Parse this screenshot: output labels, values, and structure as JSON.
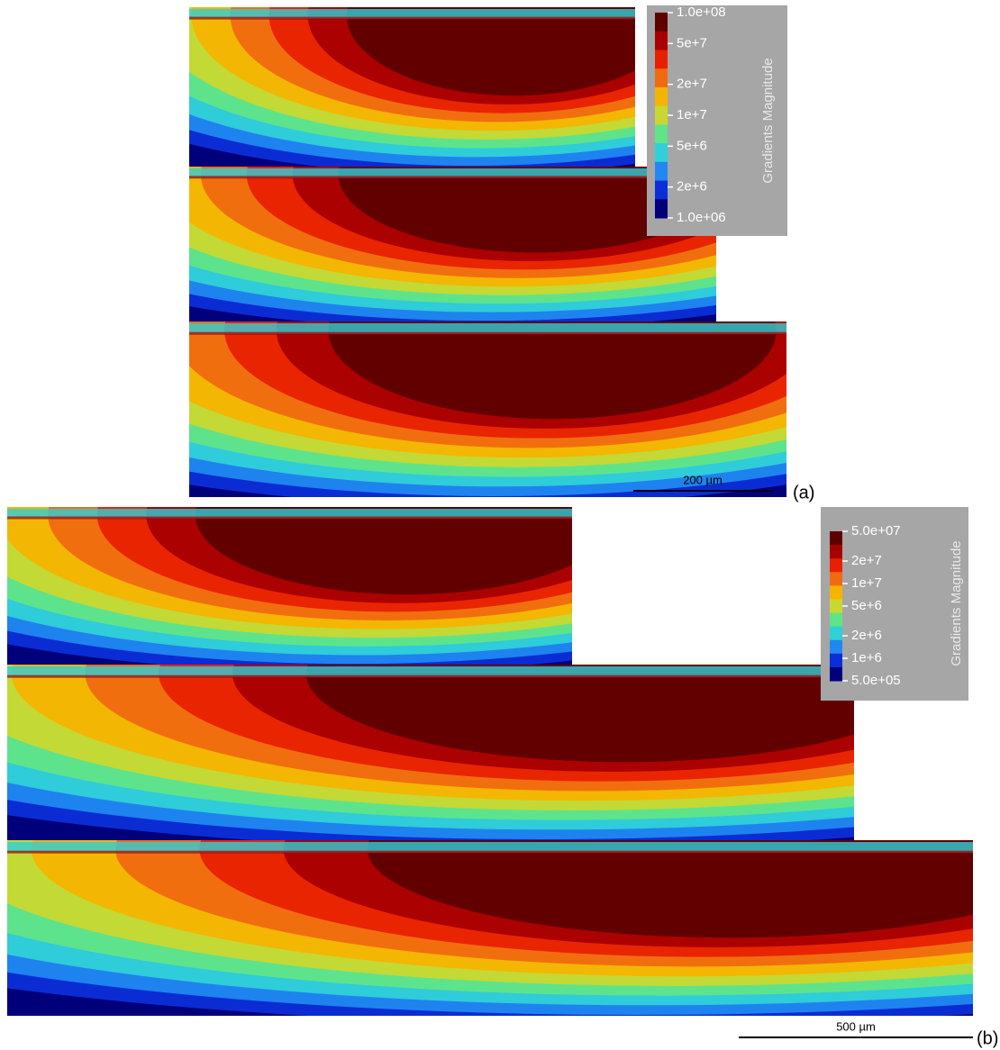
{
  "panels": [
    {
      "label": "(a)",
      "scale_bar": "200 µm",
      "colorbar": {
        "title": "Gradients Magnitude",
        "log": true,
        "lim": [
          1000000,
          100000000
        ],
        "ticks": [
          {
            "value": 100000000,
            "label": "1.0e+08"
          },
          {
            "value": 50000000,
            "label": "5e+7"
          },
          {
            "value": 20000000,
            "label": "2e+7"
          },
          {
            "value": 10000000,
            "label": "1e+7"
          },
          {
            "value": 5000000,
            "label": "5e+6"
          },
          {
            "value": 2000000,
            "label": "2e+6"
          },
          {
            "value": 1000000,
            "label": "1.0e+06"
          }
        ],
        "colors": [
          "#5e0000",
          "#a80000",
          "#e82000",
          "#f06a10",
          "#f5b400",
          "#c8d830",
          "#60e488",
          "#30d0d8",
          "#2088f0",
          "#0c2ed8",
          "#00007a"
        ]
      }
    },
    {
      "label": "(b)",
      "scale_bar": "500 µm",
      "colorbar": {
        "title": "Gradients Magnitude",
        "log": true,
        "lim": [
          500000,
          50000000
        ],
        "ticks": [
          {
            "value": 50000000,
            "label": "5.0e+07"
          },
          {
            "value": 20000000,
            "label": "2e+7"
          },
          {
            "value": 10000000,
            "label": "1e+7"
          },
          {
            "value": 5000000,
            "label": "5e+6"
          },
          {
            "value": 2000000,
            "label": "2e+6"
          },
          {
            "value": 1000000,
            "label": "1e+6"
          },
          {
            "value": 500000,
            "label": "5.0e+05"
          }
        ],
        "colors": [
          "#5e0000",
          "#a80000",
          "#e82000",
          "#f06a10",
          "#f5b400",
          "#c8d830",
          "#60e488",
          "#30d0d8",
          "#2088f0",
          "#0c2ed8",
          "#00007a"
        ]
      }
    }
  ]
}
